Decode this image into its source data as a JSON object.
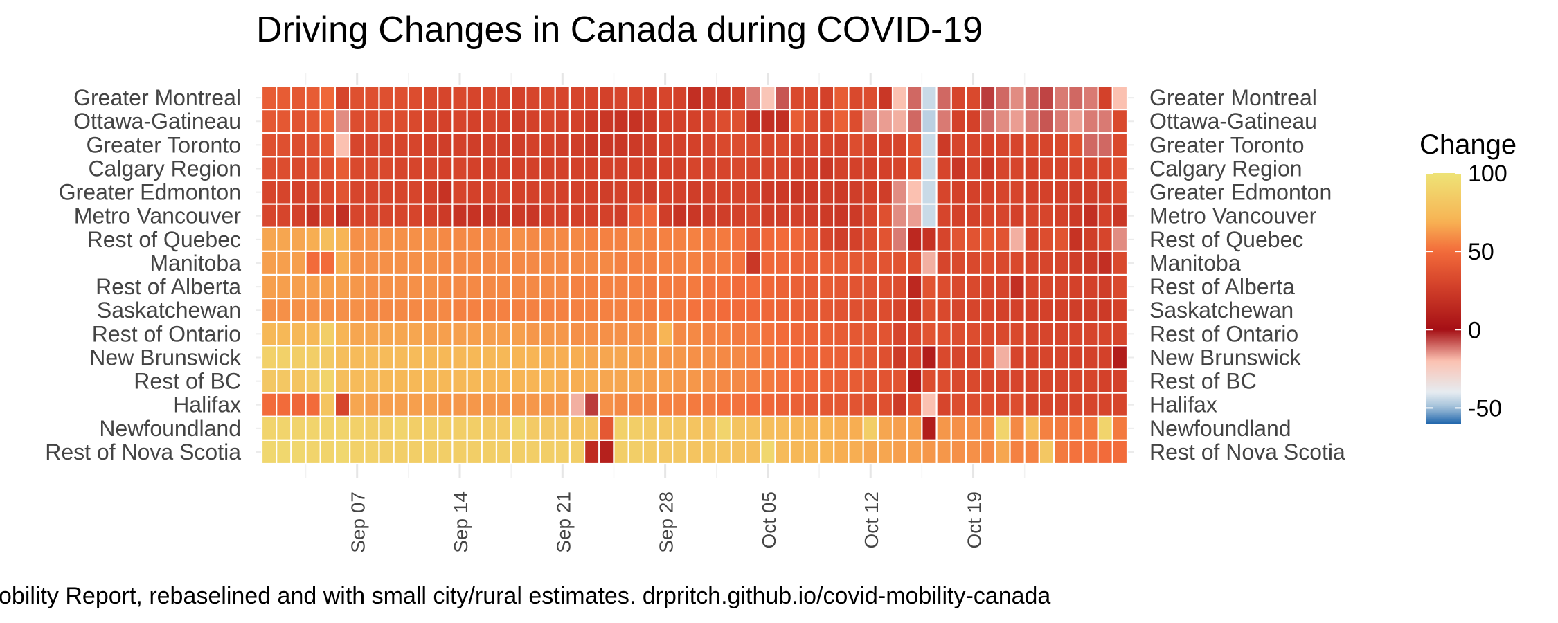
{
  "chart_data": {
    "type": "heatmap",
    "title": "Driving Changes in Canada during COVID-19",
    "caption": "obility Report, rebaselined and with small city/rural estimates. drpritch.github.io/covid-mobility-canada",
    "legend_title": "Change",
    "legend_placement": "right",
    "color_scale": {
      "ticks": [
        100,
        50,
        0,
        -50
      ],
      "stops": [
        {
          "value": 100,
          "color": "#eee377"
        },
        {
          "value": 70,
          "color": "#f7b555"
        },
        {
          "value": 50,
          "color": "#f26b3a"
        },
        {
          "value": 30,
          "color": "#d6452c"
        },
        {
          "value": 0,
          "color": "#a50f15"
        },
        {
          "value": -20,
          "color": "#fbc1b1"
        },
        {
          "value": -40,
          "color": "#e6ecf1"
        },
        {
          "value": -50,
          "color": "#9ebed8"
        },
        {
          "value": -60,
          "color": "#2166ac"
        }
      ]
    },
    "x_ticks": [
      "Sep 07",
      "Sep 14",
      "Sep 21",
      "Sep 28",
      "Oct 05",
      "Oct 12",
      "Oct 19"
    ],
    "x_start": "2020-09-01",
    "x_end": "2020-10-24",
    "grid": true,
    "rows": [
      {
        "name": "Greater Montreal",
        "values": [
          42,
          42,
          40,
          42,
          48,
          30,
          36,
          36,
          36,
          36,
          34,
          32,
          30,
          32,
          30,
          32,
          30,
          28,
          30,
          32,
          30,
          30,
          30,
          28,
          30,
          30,
          28,
          30,
          28,
          18,
          24,
          22,
          28,
          -12,
          -22,
          -8,
          32,
          32,
          28,
          42,
          32,
          34,
          22,
          -20,
          -10,
          -44,
          -10,
          30,
          32,
          -5,
          -10,
          -14,
          -10,
          -6,
          -12,
          -10,
          -12,
          28,
          -20
        ]
      },
      {
        "name": "Ottawa-Gatineau",
        "values": [
          40,
          40,
          38,
          40,
          46,
          -14,
          34,
          34,
          34,
          34,
          32,
          30,
          28,
          30,
          28,
          30,
          28,
          26,
          28,
          30,
          28,
          28,
          24,
          22,
          20,
          20,
          24,
          28,
          28,
          28,
          30,
          34,
          36,
          20,
          18,
          18,
          42,
          34,
          32,
          44,
          34,
          -14,
          -16,
          -18,
          -10,
          -46,
          -12,
          28,
          28,
          -10,
          -14,
          -16,
          -12,
          -8,
          -12,
          -16,
          -12,
          -12,
          32
        ]
      },
      {
        "name": "Greater Toronto",
        "values": [
          36,
          36,
          34,
          36,
          40,
          -20,
          30,
          30,
          30,
          30,
          30,
          28,
          26,
          28,
          26,
          28,
          26,
          26,
          28,
          28,
          26,
          26,
          22,
          22,
          22,
          24,
          26,
          28,
          28,
          28,
          30,
          32,
          34,
          32,
          30,
          32,
          30,
          30,
          30,
          28,
          34,
          30,
          28,
          30,
          36,
          -44,
          24,
          30,
          30,
          28,
          30,
          30,
          32,
          30,
          32,
          36,
          -10,
          -10,
          32
        ]
      },
      {
        "name": "Calgary Region",
        "values": [
          34,
          34,
          32,
          34,
          36,
          42,
          32,
          32,
          32,
          30,
          30,
          30,
          28,
          30,
          28,
          28,
          28,
          28,
          28,
          28,
          28,
          28,
          28,
          28,
          28,
          28,
          28,
          28,
          28,
          30,
          30,
          30,
          32,
          30,
          30,
          30,
          28,
          28,
          22,
          28,
          28,
          28,
          28,
          30,
          34,
          -44,
          30,
          22,
          30,
          22,
          30,
          30,
          28,
          30,
          30,
          30,
          30,
          30,
          34
        ]
      },
      {
        "name": "Greater Edmonton",
        "values": [
          30,
          30,
          28,
          30,
          32,
          38,
          30,
          30,
          30,
          30,
          30,
          28,
          20,
          30,
          28,
          30,
          30,
          28,
          28,
          30,
          28,
          28,
          28,
          26,
          28,
          28,
          26,
          28,
          28,
          26,
          28,
          28,
          30,
          28,
          24,
          24,
          22,
          24,
          26,
          24,
          26,
          28,
          26,
          -14,
          -20,
          -44,
          30,
          28,
          28,
          28,
          30,
          30,
          28,
          28,
          28,
          26,
          26,
          26,
          32
        ]
      },
      {
        "name": "Metro Vancouver",
        "values": [
          30,
          30,
          28,
          20,
          30,
          18,
          30,
          30,
          30,
          30,
          30,
          28,
          24,
          20,
          20,
          22,
          22,
          24,
          22,
          28,
          28,
          28,
          28,
          28,
          26,
          42,
          48,
          26,
          20,
          22,
          26,
          26,
          28,
          30,
          26,
          26,
          28,
          26,
          24,
          22,
          24,
          30,
          36,
          -14,
          -16,
          -44,
          30,
          28,
          28,
          30,
          30,
          28,
          30,
          30,
          28,
          24,
          18,
          28,
          22
        ]
      },
      {
        "name": "Rest of Quebec",
        "values": [
          66,
          66,
          66,
          68,
          76,
          70,
          60,
          60,
          60,
          60,
          60,
          60,
          58,
          58,
          58,
          58,
          58,
          60,
          58,
          58,
          58,
          58,
          56,
          56,
          56,
          58,
          56,
          56,
          56,
          56,
          54,
          54,
          52,
          40,
          48,
          50,
          48,
          42,
          30,
          26,
          28,
          34,
          38,
          -12,
          14,
          20,
          30,
          38,
          38,
          40,
          38,
          -18,
          30,
          34,
          38,
          20,
          26,
          30,
          -14
        ]
      },
      {
        "name": "Manitoba",
        "values": [
          64,
          64,
          64,
          50,
          50,
          68,
          60,
          60,
          60,
          60,
          60,
          60,
          58,
          58,
          58,
          58,
          58,
          58,
          58,
          58,
          58,
          58,
          58,
          58,
          56,
          56,
          56,
          56,
          56,
          56,
          54,
          54,
          52,
          22,
          48,
          48,
          46,
          44,
          44,
          42,
          40,
          40,
          38,
          38,
          34,
          -18,
          30,
          32,
          32,
          34,
          32,
          32,
          30,
          30,
          30,
          26,
          24,
          18,
          32
        ]
      },
      {
        "name": "Rest of Alberta",
        "values": [
          64,
          64,
          64,
          64,
          64,
          64,
          62,
          60,
          60,
          60,
          60,
          60,
          58,
          58,
          58,
          58,
          58,
          58,
          58,
          58,
          58,
          56,
          56,
          56,
          56,
          56,
          54,
          54,
          54,
          54,
          52,
          52,
          50,
          50,
          48,
          46,
          44,
          42,
          42,
          40,
          38,
          38,
          36,
          34,
          14,
          38,
          34,
          32,
          32,
          30,
          30,
          18,
          30,
          30,
          30,
          28,
          28,
          26,
          32
        ]
      },
      {
        "name": "Saskatchewan",
        "values": [
          60,
          60,
          60,
          60,
          60,
          60,
          60,
          58,
          58,
          58,
          58,
          58,
          58,
          56,
          56,
          56,
          56,
          56,
          56,
          56,
          56,
          56,
          56,
          56,
          56,
          56,
          54,
          54,
          54,
          52,
          52,
          50,
          50,
          48,
          48,
          46,
          44,
          42,
          40,
          38,
          36,
          36,
          34,
          30,
          20,
          36,
          32,
          30,
          30,
          30,
          28,
          28,
          28,
          28,
          28,
          26,
          26,
          24,
          28
        ]
      },
      {
        "name": "Rest of Ontario",
        "values": [
          72,
          72,
          72,
          72,
          86,
          70,
          66,
          66,
          66,
          66,
          66,
          64,
          64,
          64,
          64,
          64,
          64,
          64,
          62,
          62,
          62,
          60,
          60,
          60,
          60,
          60,
          60,
          70,
          58,
          58,
          56,
          56,
          54,
          54,
          52,
          50,
          48,
          46,
          44,
          42,
          40,
          40,
          38,
          30,
          30,
          38,
          36,
          34,
          34,
          32,
          32,
          32,
          30,
          30,
          30,
          30,
          30,
          30,
          30
        ]
      },
      {
        "name": "New Brunswick",
        "values": [
          88,
          88,
          86,
          86,
          84,
          76,
          74,
          74,
          74,
          74,
          74,
          72,
          72,
          72,
          72,
          72,
          72,
          70,
          70,
          68,
          68,
          68,
          66,
          66,
          66,
          64,
          64,
          62,
          62,
          60,
          60,
          58,
          58,
          56,
          54,
          52,
          50,
          48,
          46,
          44,
          42,
          40,
          36,
          24,
          30,
          8,
          32,
          30,
          30,
          34,
          -18,
          30,
          30,
          30,
          30,
          28,
          28,
          28,
          8
        ]
      },
      {
        "name": "Rest of BC",
        "values": [
          82,
          82,
          80,
          84,
          90,
          76,
          74,
          74,
          72,
          72,
          72,
          72,
          72,
          72,
          72,
          70,
          70,
          70,
          70,
          70,
          68,
          68,
          68,
          66,
          66,
          66,
          64,
          64,
          62,
          62,
          60,
          58,
          58,
          56,
          54,
          52,
          50,
          48,
          46,
          44,
          42,
          40,
          38,
          38,
          8,
          34,
          34,
          32,
          32,
          30,
          30,
          30,
          30,
          30,
          30,
          30,
          30,
          28,
          28
        ]
      },
      {
        "name": "Halifax",
        "values": [
          50,
          50,
          48,
          50,
          80,
          30,
          66,
          64,
          64,
          64,
          64,
          64,
          62,
          62,
          62,
          62,
          62,
          62,
          62,
          62,
          62,
          -18,
          -5,
          60,
          58,
          58,
          58,
          56,
          56,
          54,
          54,
          52,
          52,
          50,
          48,
          46,
          44,
          42,
          40,
          40,
          38,
          36,
          36,
          24,
          36,
          -20,
          30,
          34,
          34,
          34,
          32,
          34,
          30,
          30,
          30,
          30,
          30,
          30,
          30
        ]
      },
      {
        "name": "Newfoundland",
        "values": [
          90,
          90,
          90,
          90,
          90,
          90,
          88,
          86,
          86,
          90,
          86,
          86,
          86,
          86,
          86,
          84,
          84,
          92,
          84,
          82,
          82,
          80,
          80,
          40,
          88,
          86,
          84,
          82,
          82,
          80,
          78,
          90,
          80,
          78,
          76,
          74,
          72,
          70,
          70,
          68,
          68,
          86,
          66,
          64,
          64,
          8,
          62,
          60,
          60,
          58,
          90,
          58,
          76,
          56,
          54,
          54,
          54,
          90,
          54
        ]
      },
      {
        "name": "Rest of Nova Scotia",
        "values": [
          92,
          92,
          92,
          90,
          90,
          92,
          88,
          88,
          86,
          86,
          86,
          86,
          86,
          86,
          86,
          86,
          86,
          86,
          86,
          86,
          86,
          86,
          16,
          10,
          86,
          86,
          84,
          82,
          82,
          80,
          80,
          80,
          78,
          76,
          92,
          74,
          72,
          72,
          70,
          68,
          68,
          66,
          66,
          64,
          64,
          62,
          62,
          60,
          60,
          58,
          66,
          56,
          56,
          82,
          54,
          52,
          52,
          50,
          50
        ]
      }
    ]
  }
}
